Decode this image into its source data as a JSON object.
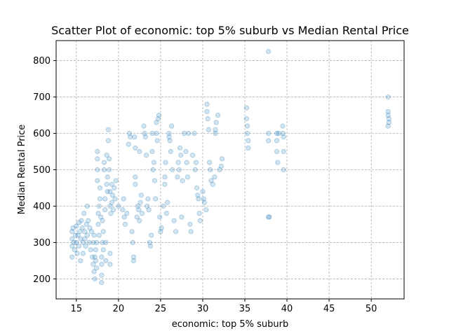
{
  "chart_data": {
    "type": "scatter",
    "title": "Scatter Plot of economic: top 5% suburb vs Median Rental Price",
    "xlabel": "economic: top 5% suburb",
    "ylabel": "Median Rental Price",
    "xlim": [
      12.6,
      53.9
    ],
    "ylim": [
      145,
      855
    ],
    "xticks": [
      15,
      20,
      25,
      30,
      35,
      40,
      45,
      50
    ],
    "yticks": [
      200,
      300,
      400,
      500,
      600,
      700,
      800
    ],
    "grid": true,
    "color": "#1f77b4",
    "points": [
      [
        14.5,
        260
      ],
      [
        14.5,
        290
      ],
      [
        14.5,
        310
      ],
      [
        14.5,
        330
      ],
      [
        14.6,
        340
      ],
      [
        14.7,
        300
      ],
      [
        14.8,
        280
      ],
      [
        14.9,
        320
      ],
      [
        15.0,
        345
      ],
      [
        15.0,
        300
      ],
      [
        15.1,
        270
      ],
      [
        15.2,
        320
      ],
      [
        15.3,
        355
      ],
      [
        15.3,
        290
      ],
      [
        15.4,
        330
      ],
      [
        15.5,
        310
      ],
      [
        15.5,
        250
      ],
      [
        15.6,
        360
      ],
      [
        15.7,
        340
      ],
      [
        15.8,
        300
      ],
      [
        15.8,
        270
      ],
      [
        15.9,
        380
      ],
      [
        16.0,
        330
      ],
      [
        16.0,
        310
      ],
      [
        16.1,
        290
      ],
      [
        16.2,
        350
      ],
      [
        16.3,
        320
      ],
      [
        16.3,
        400
      ],
      [
        16.4,
        360
      ],
      [
        16.5,
        300
      ],
      [
        16.6,
        340
      ],
      [
        16.7,
        280
      ],
      [
        16.8,
        330
      ],
      [
        16.9,
        260
      ],
      [
        17.0,
        240
      ],
      [
        17.0,
        300
      ],
      [
        17.1,
        220
      ],
      [
        17.1,
        320
      ],
      [
        17.2,
        200
      ],
      [
        17.2,
        260
      ],
      [
        17.3,
        280
      ],
      [
        17.3,
        250
      ],
      [
        17.4,
        230
      ],
      [
        17.4,
        300
      ],
      [
        17.5,
        470
      ],
      [
        17.5,
        500
      ],
      [
        17.5,
        530
      ],
      [
        17.5,
        550
      ],
      [
        17.6,
        380
      ],
      [
        17.6,
        350
      ],
      [
        17.7,
        400
      ],
      [
        17.7,
        320
      ],
      [
        17.8,
        450
      ],
      [
        17.8,
        420
      ],
      [
        17.9,
        370
      ],
      [
        18.0,
        190
      ],
      [
        18.0,
        210
      ],
      [
        18.0,
        240
      ],
      [
        18.0,
        260
      ],
      [
        18.1,
        360
      ],
      [
        18.1,
        300
      ],
      [
        18.2,
        330
      ],
      [
        18.2,
        280
      ],
      [
        18.3,
        500
      ],
      [
        18.3,
        520
      ],
      [
        18.4,
        420
      ],
      [
        18.4,
        390
      ],
      [
        18.5,
        300
      ],
      [
        18.5,
        250
      ],
      [
        18.6,
        540
      ],
      [
        18.6,
        460
      ],
      [
        18.7,
        480
      ],
      [
        18.7,
        440
      ],
      [
        18.8,
        610
      ],
      [
        18.8,
        580
      ],
      [
        18.9,
        530
      ],
      [
        18.9,
        500
      ],
      [
        19.0,
        440
      ],
      [
        19.0,
        400
      ],
      [
        19.0,
        270
      ],
      [
        19.0,
        240
      ],
      [
        19.1,
        380
      ],
      [
        19.2,
        460
      ],
      [
        19.2,
        410
      ],
      [
        19.3,
        430
      ],
      [
        19.4,
        390
      ],
      [
        19.5,
        450
      ],
      [
        19.6,
        420
      ],
      [
        19.7,
        470
      ],
      [
        20.0,
        400
      ],
      [
        20.5,
        390
      ],
      [
        20.6,
        420
      ],
      [
        20.7,
        370
      ],
      [
        20.8,
        350
      ],
      [
        21.0,
        380
      ],
      [
        21.2,
        570
      ],
      [
        21.3,
        600
      ],
      [
        21.4,
        590
      ],
      [
        21.6,
        330
      ],
      [
        21.7,
        300
      ],
      [
        21.8,
        260
      ],
      [
        21.8,
        250
      ],
      [
        21.9,
        590
      ],
      [
        22.0,
        560
      ],
      [
        22.0,
        480
      ],
      [
        22.0,
        460
      ],
      [
        22.2,
        370
      ],
      [
        22.3,
        400
      ],
      [
        22.4,
        390
      ],
      [
        22.5,
        360
      ],
      [
        22.5,
        550
      ],
      [
        22.6,
        410
      ],
      [
        22.7,
        430
      ],
      [
        22.8,
        380
      ],
      [
        23.0,
        620
      ],
      [
        23.1,
        600
      ],
      [
        23.2,
        590
      ],
      [
        23.3,
        540
      ],
      [
        23.4,
        400
      ],
      [
        23.5,
        420
      ],
      [
        23.6,
        390
      ],
      [
        23.7,
        300
      ],
      [
        23.8,
        290
      ],
      [
        23.9,
        320
      ],
      [
        24.0,
        600
      ],
      [
        24.0,
        550
      ],
      [
        24.1,
        500
      ],
      [
        24.2,
        520
      ],
      [
        24.3,
        470
      ],
      [
        24.4,
        420
      ],
      [
        24.5,
        630
      ],
      [
        24.5,
        600
      ],
      [
        24.6,
        580
      ],
      [
        24.7,
        640
      ],
      [
        24.8,
        650
      ],
      [
        24.9,
        370
      ],
      [
        25.0,
        330
      ],
      [
        25.1,
        340
      ],
      [
        25.3,
        400
      ],
      [
        25.5,
        460
      ],
      [
        25.5,
        480
      ],
      [
        25.6,
        520
      ],
      [
        25.7,
        380
      ],
      [
        25.8,
        410
      ],
      [
        26.0,
        600
      ],
      [
        26.0,
        590
      ],
      [
        26.1,
        580
      ],
      [
        26.2,
        550
      ],
      [
        26.3,
        620
      ],
      [
        26.4,
        500
      ],
      [
        26.6,
        360
      ],
      [
        26.8,
        330
      ],
      [
        27.0,
        480
      ],
      [
        27.1,
        520
      ],
      [
        27.2,
        500
      ],
      [
        27.3,
        560
      ],
      [
        27.4,
        540
      ],
      [
        27.5,
        370
      ],
      [
        27.6,
        470
      ],
      [
        27.8,
        600
      ],
      [
        28.0,
        550
      ],
      [
        28.1,
        520
      ],
      [
        28.2,
        480
      ],
      [
        28.3,
        600
      ],
      [
        28.5,
        350
      ],
      [
        28.6,
        330
      ],
      [
        28.8,
        540
      ],
      [
        29.0,
        600
      ],
      [
        29.1,
        500
      ],
      [
        29.2,
        520
      ],
      [
        29.3,
        450
      ],
      [
        29.4,
        430
      ],
      [
        29.5,
        420
      ],
      [
        29.6,
        380
      ],
      [
        29.7,
        360
      ],
      [
        30.0,
        440
      ],
      [
        30.1,
        420
      ],
      [
        30.2,
        410
      ],
      [
        30.4,
        390
      ],
      [
        30.5,
        680
      ],
      [
        30.5,
        660
      ],
      [
        30.6,
        640
      ],
      [
        30.7,
        610
      ],
      [
        30.8,
        520
      ],
      [
        30.9,
        500
      ],
      [
        31.0,
        470
      ],
      [
        31.2,
        460
      ],
      [
        31.4,
        480
      ],
      [
        31.5,
        610
      ],
      [
        31.5,
        600
      ],
      [
        31.6,
        630
      ],
      [
        31.8,
        650
      ],
      [
        32.0,
        500
      ],
      [
        32.2,
        510
      ],
      [
        32.3,
        530
      ],
      [
        35.2,
        670
      ],
      [
        35.2,
        640
      ],
      [
        35.3,
        620
      ],
      [
        35.3,
        600
      ],
      [
        35.4,
        580
      ],
      [
        35.4,
        560
      ],
      [
        37.8,
        825
      ],
      [
        37.8,
        600
      ],
      [
        37.8,
        580
      ],
      [
        37.8,
        370
      ],
      [
        37.9,
        370
      ],
      [
        38.8,
        600
      ],
      [
        38.8,
        580
      ],
      [
        38.8,
        550
      ],
      [
        38.9,
        520
      ],
      [
        39.0,
        600
      ],
      [
        39.5,
        620
      ],
      [
        39.5,
        600
      ],
      [
        39.6,
        550
      ],
      [
        39.6,
        500
      ],
      [
        39.6,
        590
      ],
      [
        52.0,
        700
      ],
      [
        52.0,
        660
      ],
      [
        52.0,
        650
      ],
      [
        52.1,
        640
      ],
      [
        52.1,
        630
      ],
      [
        52.0,
        620
      ]
    ]
  }
}
